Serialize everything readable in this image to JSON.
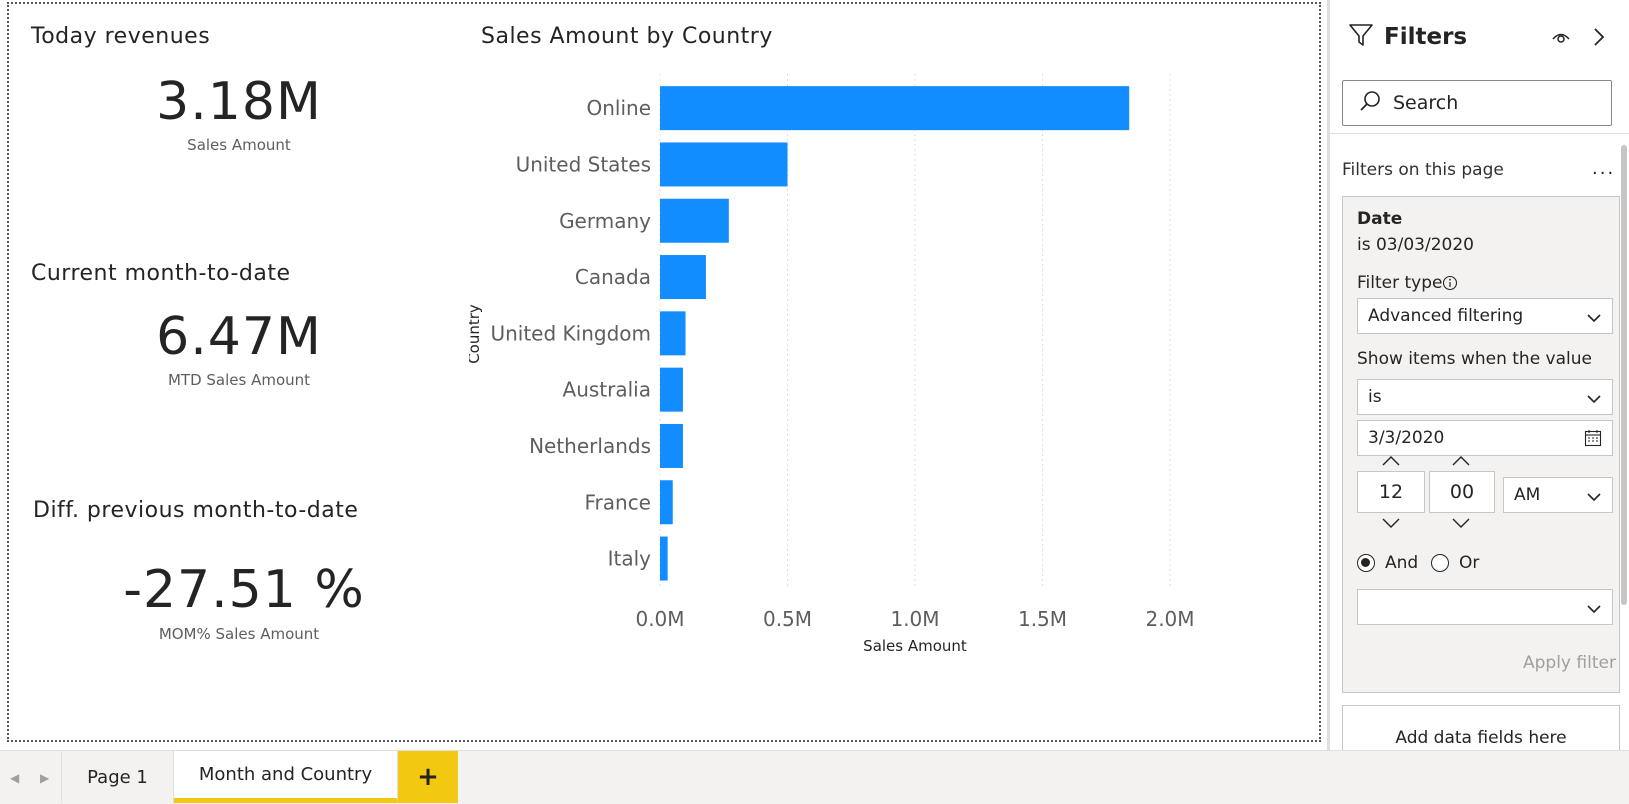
{
  "kpis": [
    {
      "title": "Today revenues",
      "value": "3.18M",
      "label": "Sales Amount"
    },
    {
      "title": "Current month-to-date",
      "value": "6.47M",
      "label": "MTD Sales Amount"
    },
    {
      "title": "Diff. previous month-to-date",
      "value": "-27.51 %",
      "label": "MOM% Sales Amount"
    }
  ],
  "chart_data": {
    "type": "bar",
    "orientation": "horizontal",
    "title": "Sales Amount by Country",
    "xlabel": "Sales Amount",
    "ylabel": "Country",
    "categories": [
      "Online",
      "United States",
      "Germany",
      "Canada",
      "United Kingdom",
      "Australia",
      "Netherlands",
      "France",
      "Italy"
    ],
    "values": [
      1.84,
      0.5,
      0.27,
      0.18,
      0.1,
      0.09,
      0.09,
      0.05,
      0.03
    ],
    "value_unit": "M",
    "xticks": [
      "0.0M",
      "0.5M",
      "1.0M",
      "1.5M",
      "2.0M"
    ],
    "xlim": [
      0,
      2.0
    ],
    "grid": "vertical dotted",
    "bar_color": "#118dff"
  },
  "filters": {
    "title": "Filters",
    "search_placeholder": "Search",
    "section_label": "Filters on this page",
    "ellipsis": "...",
    "card": {
      "field": "Date",
      "summary": "is 03/03/2020",
      "filter_type_label": "Filter type",
      "filter_type_value": "Advanced filtering",
      "show_items_label": "Show items when the value",
      "condition_value": "is",
      "date_value": "3/3/2020",
      "hour": "12",
      "minute": "00",
      "ampm": "AM",
      "and_label": "And",
      "or_label": "Or",
      "logic_selected": "And",
      "second_condition_value": "",
      "apply_label": "Apply filter"
    },
    "add_fields_label": "Add data fields here"
  },
  "tabs": {
    "items": [
      "Page 1",
      "Month and Country"
    ],
    "active": "Month and Country",
    "add_label": "+"
  },
  "colors": {
    "accent_bar": "#118dff",
    "tab_accent": "#f2c811"
  }
}
